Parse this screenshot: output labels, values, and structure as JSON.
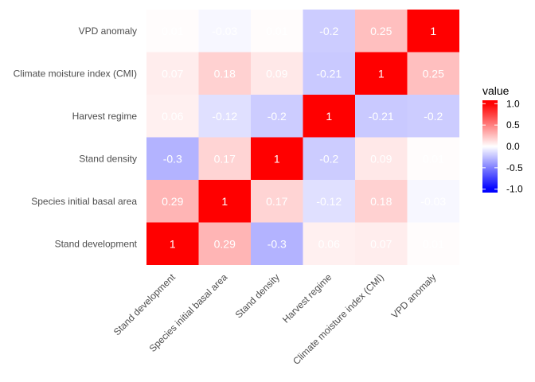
{
  "chart_data": {
    "type": "heatmap",
    "x_categories": [
      "Stand development",
      "Species initial basal area",
      "Stand density",
      "Harvest regime",
      "Climate moisture index (CMI)",
      "VPD anomaly"
    ],
    "y_categories": [
      "Stand development",
      "Species initial basal area",
      "Stand density",
      "Harvest regime",
      "Climate moisture index (CMI)",
      "VPD anomaly"
    ],
    "values": [
      [
        1,
        0.29,
        -0.3,
        0.06,
        0.07,
        0.01
      ],
      [
        0.29,
        1,
        0.17,
        -0.12,
        0.18,
        -0.03
      ],
      [
        -0.3,
        0.17,
        1,
        -0.2,
        0.09,
        0.01
      ],
      [
        0.06,
        -0.12,
        -0.2,
        1,
        -0.21,
        -0.2
      ],
      [
        0.07,
        0.18,
        0.09,
        -0.21,
        1,
        0.25
      ],
      [
        0.01,
        -0.03,
        0.01,
        -0.2,
        0.25,
        1
      ]
    ],
    "cell_labels": [
      [
        "1",
        "0.29",
        "-0.3",
        "0.06",
        "0.07",
        "0.01"
      ],
      [
        "0.29",
        "1",
        "0.17",
        "-0.12",
        "0.18",
        "-0.03"
      ],
      [
        "-0.3",
        "0.17",
        "1",
        "-0.2",
        "0.09",
        "0.01"
      ],
      [
        "0.06",
        "-0.12",
        "-0.2",
        "1",
        "-0.21",
        "-0.2"
      ],
      [
        "0.07",
        "0.18",
        "0.09",
        "-0.21",
        "1",
        "0.25"
      ],
      [
        "0.01",
        "-0.03",
        "0.01",
        "-0.2",
        "0.25",
        "1"
      ]
    ],
    "legend": {
      "title": "value",
      "ticks": [
        1.0,
        0.5,
        0.0,
        -0.5,
        -1.0
      ],
      "tick_labels": [
        "1.0",
        "0.5",
        "0.0",
        "-0.5",
        "-1.0"
      ],
      "position": "right"
    },
    "scale": {
      "low": -1,
      "mid": 0,
      "high": 1,
      "low_color": "#0000ff",
      "mid_color": "#ffffff",
      "high_color": "#ff0000"
    },
    "grid": false
  }
}
